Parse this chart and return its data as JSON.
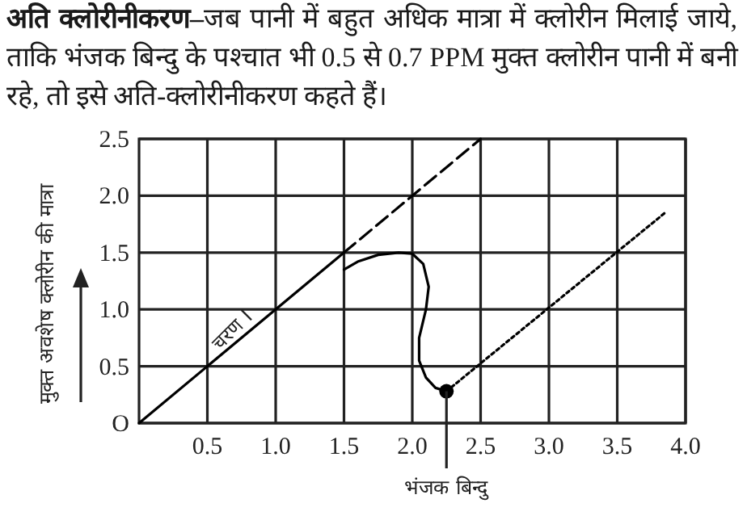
{
  "chart_data": {
    "type": "line",
    "title": "अति क्लोरीनीकरण–",
    "subtitle": "जब पानी में बहुत अधिक मात्रा में क्लोरीन मिलाई जाये, ताकि भंजक बिन्दु के पश्चात भी 0.5 से 0.7 PPM मुक्त क्लोरीन पानी में बनी रहे, तो इसे अति-क्लोरीनीकरण कहते हैं।",
    "ylabel": "मुक्त अवशेष क्लोरीन की मात्रा",
    "xlim": [
      0,
      4
    ],
    "ylim": [
      0,
      2.5
    ],
    "xticks": [
      {
        "value": 0.5,
        "label": "0.5"
      },
      {
        "value": 1,
        "label": "1.0"
      },
      {
        "value": 1.5,
        "label": "1.5"
      },
      {
        "value": 2,
        "label": "2.0"
      },
      {
        "value": 2.5,
        "label": "2.5"
      },
      {
        "value": 3,
        "label": "3.0"
      },
      {
        "value": 3.5,
        "label": "3.5"
      },
      {
        "value": 4,
        "label": "4.0"
      }
    ],
    "yticks": [
      {
        "value": 0,
        "label": "O"
      },
      {
        "value": 0.5,
        "label": "0.5"
      },
      {
        "value": 1,
        "label": "1.0"
      },
      {
        "value": 1.5,
        "label": "1.5"
      },
      {
        "value": 2,
        "label": "2.0"
      },
      {
        "value": 2.5,
        "label": "2.5"
      }
    ],
    "grid": true,
    "series": [
      {
        "color": "#000000",
        "line_style": "solid",
        "x": [
          0,
          1.5
        ],
        "values": [
          0,
          1.5
        ]
      },
      {
        "color": "#000000",
        "line_style": "dashed",
        "x": [
          1.5,
          2.5
        ],
        "values": [
          1.5,
          2.5
        ]
      },
      {
        "color": "#000000",
        "line_style": "solid",
        "x": [
          1.5,
          1.6,
          1.75,
          1.9,
          2.0,
          2.08,
          2.12,
          2.1,
          2.05,
          2.05,
          2.1,
          2.17,
          2.25
        ],
        "values": [
          1.35,
          1.42,
          1.48,
          1.5,
          1.49,
          1.4,
          1.2,
          1.0,
          0.75,
          0.55,
          0.4,
          0.31,
          0.28
        ]
      },
      {
        "color": "#000000",
        "line_style": "dotted",
        "x": [
          2.25,
          3.85
        ],
        "values": [
          0.28,
          1.85
        ]
      },
      {
        "type": "scatter",
        "color": "#000000",
        "marker": "circle",
        "x": [
          2.25
        ],
        "values": [
          0.28
        ]
      }
    ],
    "annotations": [
      {
        "text": "चरण I",
        "x": 0.75,
        "y": 0.75
      },
      {
        "text": "भंजक बिन्दु",
        "x": 2.25,
        "y": 0.28
      }
    ]
  }
}
